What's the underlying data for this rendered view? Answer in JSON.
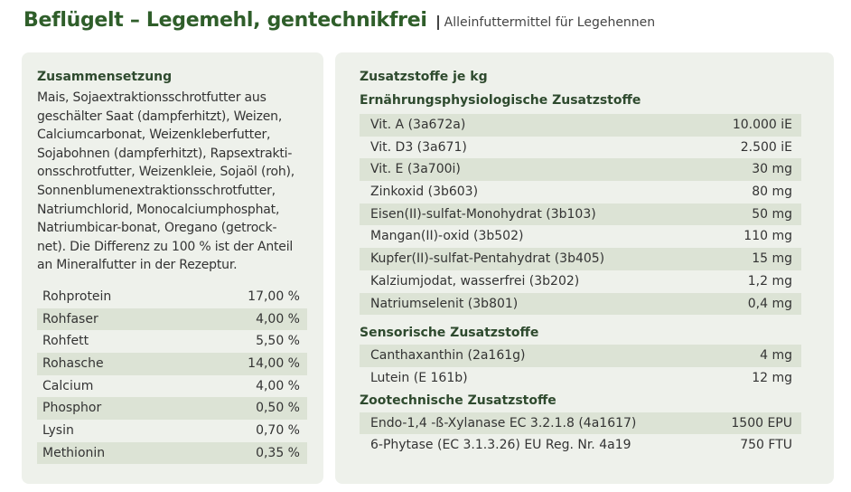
{
  "header": {
    "title": "Beflügelt – Legemehl, gentechnikfrei",
    "subtitle": "Alleinfuttermittel für Legehennen"
  },
  "composition": {
    "heading": "Zusammensetzung",
    "lines": [
      "Mais, Sojaextraktionsschrotfutter aus",
      "geschälter Saat (dampferhitzt), Weizen,",
      "Calciumcarbonat, Weizenkleberfutter,",
      "Sojabohnen (dampferhitzt), Rapsextrakti-",
      "onsschrotfutter, Weizenkleie, Sojaöl (roh),",
      "Sonnenblumenextraktionsschrotfutter,",
      "Natriumchlorid, Monocalciumphosphat,",
      "Natriumbicar-bonat, Oregano (getrock-",
      "net). Die Differenz zu 100 % ist der Anteil",
      "an Mineralfutter in der Rezeptur."
    ],
    "rows": [
      [
        "Rohprotein",
        "17,00 %"
      ],
      [
        "Rohfaser",
        "4,00 %"
      ],
      [
        "Rohfett",
        "5,50 %"
      ],
      [
        "Rohasche",
        "14,00 %"
      ],
      [
        "Calcium",
        "4,00 %"
      ],
      [
        "Phosphor",
        "0,50 %"
      ],
      [
        "Lysin",
        "0,70 %"
      ],
      [
        "Methionin",
        "0,35 %"
      ]
    ]
  },
  "additives": {
    "heading": "Zusatzstoffe je kg",
    "sections": [
      {
        "title": "Ernährungsphysiologische Zusatzstoffe",
        "rows": [
          [
            "Vit. A (3a672a)",
            "10.000 iE"
          ],
          [
            "Vit. D3 (3a671)",
            "2.500 iE"
          ],
          [
            "Vit. E (3a700i)",
            "30 mg"
          ],
          [
            "Zinkoxid (3b603)",
            "80 mg"
          ],
          [
            "Eisen(II)-sulfat-Monohydrat (3b103)",
            "50 mg"
          ],
          [
            "Mangan(II)-oxid (3b502)",
            "110 mg"
          ],
          [
            "Kupfer(II)-sulfat-Pentahydrat (3b405)",
            "15 mg"
          ],
          [
            "Kalziumjodat, wasserfrei (3b202)",
            "1,2 mg"
          ],
          [
            "Natriumselenit (3b801)",
            "0,4 mg"
          ]
        ]
      },
      {
        "title": "Sensorische Zusatzstoffe",
        "rows": [
          [
            "Canthaxanthin (2a161g)",
            "4 mg"
          ],
          [
            "Lutein (E 161b)",
            "12 mg"
          ]
        ]
      },
      {
        "title": "Zootechnische Zusatzstoffe",
        "rows": [
          [
            "Endo-1,4 -ß-Xylanase EC 3.2.1.8 (4a1617)",
            "1500 EPU"
          ],
          [
            "6-Phytase (EC 3.1.3.26) EU Reg. Nr. 4a19",
            "750 FTU"
          ]
        ]
      }
    ]
  }
}
